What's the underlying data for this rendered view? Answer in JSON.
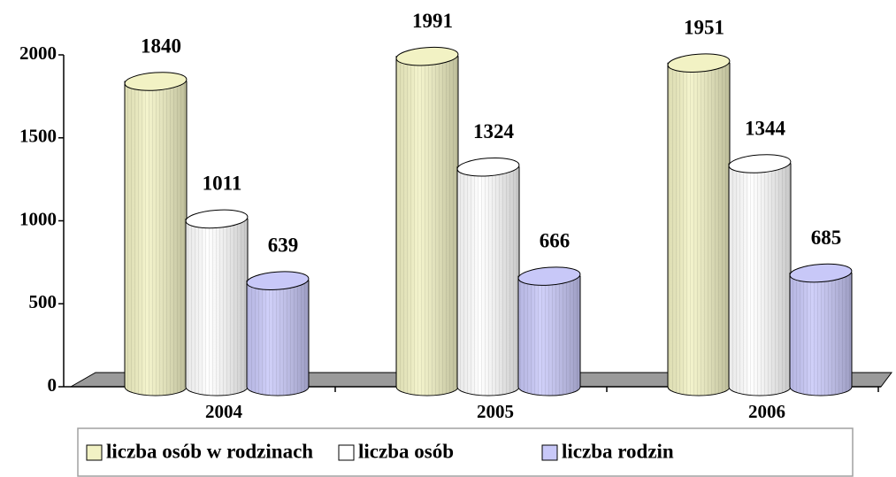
{
  "chart_data": {
    "type": "bar",
    "style": "3d-cylinder",
    "categories": [
      "2004",
      "2005",
      "2006"
    ],
    "series": [
      {
        "name": "liczba osób w rodzinach",
        "color": "#f2f2c4",
        "values": [
          1840,
          1991,
          1951
        ]
      },
      {
        "name": "liczba osób",
        "color": "#ffffff",
        "values": [
          1011,
          1324,
          1344
        ]
      },
      {
        "name": "liczba rodzin",
        "color": "#c8c8f8",
        "values": [
          639,
          666,
          685
        ]
      }
    ],
    "ylim": [
      0,
      2000
    ],
    "yticks": [
      0,
      500,
      1000,
      1500,
      2000
    ],
    "grid": false,
    "legend": "bottom"
  }
}
